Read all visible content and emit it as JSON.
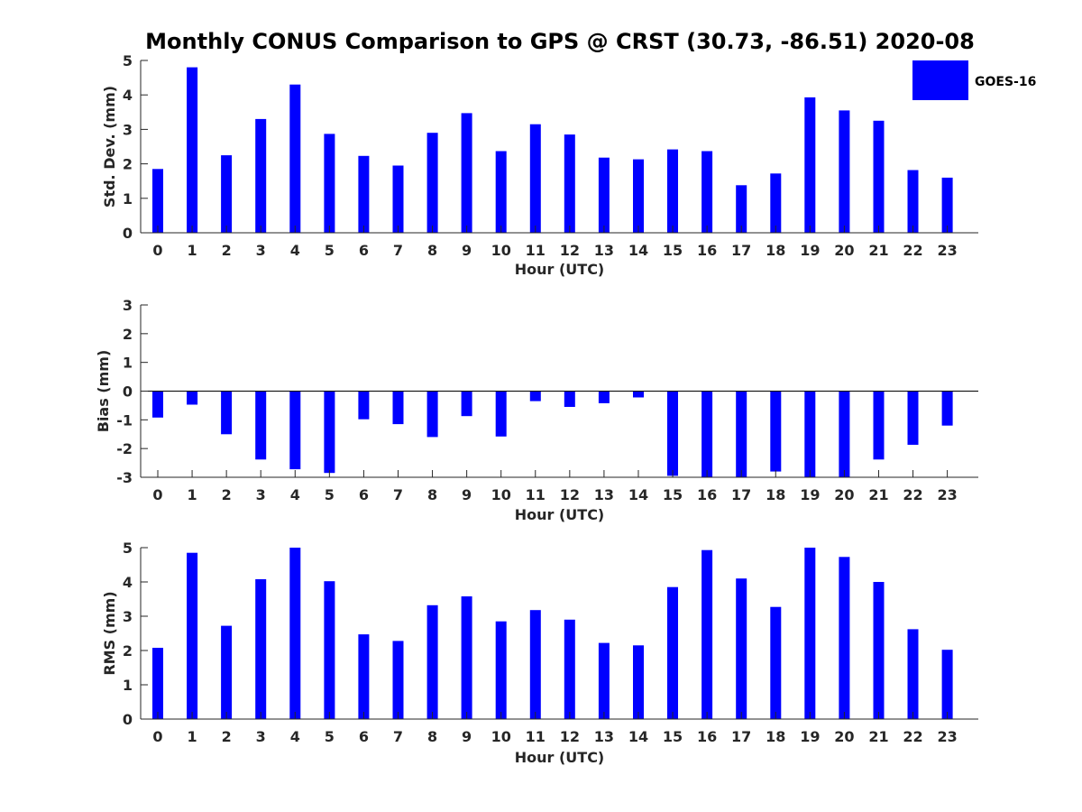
{
  "title": "Monthly CONUS Comparison to GPS @ CRST (30.73, -86.51) 2020-08",
  "legend": {
    "label": "GOES-16",
    "color": "#0000ff",
    "placement": "top-right"
  },
  "bar_color": "#0000ff",
  "chart_data": [
    {
      "type": "bar",
      "panel": "std-dev",
      "categories": [
        "0",
        "1",
        "2",
        "3",
        "4",
        "5",
        "6",
        "7",
        "8",
        "9",
        "10",
        "11",
        "12",
        "13",
        "14",
        "15",
        "16",
        "17",
        "18",
        "19",
        "20",
        "21",
        "22",
        "23"
      ],
      "series": [
        {
          "name": "GOES-16",
          "values": [
            1.85,
            4.8,
            2.25,
            3.3,
            4.3,
            2.87,
            2.23,
            1.95,
            2.9,
            3.47,
            2.37,
            3.15,
            2.85,
            2.18,
            2.13,
            2.42,
            2.37,
            1.38,
            1.72,
            3.93,
            3.55,
            3.25,
            1.82,
            1.6
          ]
        }
      ],
      "xlabel": "Hour (UTC)",
      "ylabel": "Std. Dev. (mm)",
      "ylim": [
        0,
        5
      ],
      "yticks": [
        "0",
        "1",
        "2",
        "3",
        "4",
        "5"
      ]
    },
    {
      "type": "bar",
      "panel": "bias",
      "categories": [
        "0",
        "1",
        "2",
        "3",
        "4",
        "5",
        "6",
        "7",
        "8",
        "9",
        "10",
        "11",
        "12",
        "13",
        "14",
        "15",
        "16",
        "17",
        "18",
        "19",
        "20",
        "21",
        "22",
        "23"
      ],
      "series": [
        {
          "name": "GOES-16",
          "values": [
            -0.92,
            -0.47,
            -1.5,
            -2.38,
            -2.72,
            -2.85,
            -0.98,
            -1.15,
            -1.6,
            -0.87,
            -1.58,
            -0.35,
            -0.55,
            -0.42,
            -0.22,
            -2.95,
            -3.0,
            -3.0,
            -2.8,
            -3.0,
            -3.0,
            -2.38,
            -1.87,
            -1.2
          ]
        }
      ],
      "xlabel": "Hour (UTC)",
      "ylabel": "Bias (mm)",
      "ylim": [
        -3,
        3
      ],
      "yticks": [
        "-3",
        "-2",
        "-1",
        "0",
        "1",
        "2",
        "3"
      ],
      "zero_line": true
    },
    {
      "type": "bar",
      "panel": "rms",
      "categories": [
        "0",
        "1",
        "2",
        "3",
        "4",
        "5",
        "6",
        "7",
        "8",
        "9",
        "10",
        "11",
        "12",
        "13",
        "14",
        "15",
        "16",
        "17",
        "18",
        "19",
        "20",
        "21",
        "22",
        "23"
      ],
      "series": [
        {
          "name": "GOES-16",
          "values": [
            2.08,
            4.85,
            2.72,
            4.08,
            5.0,
            4.02,
            2.47,
            2.28,
            3.32,
            3.58,
            2.85,
            3.18,
            2.9,
            2.22,
            2.15,
            3.85,
            4.93,
            4.1,
            3.27,
            5.0,
            4.73,
            4.0,
            2.62,
            2.02
          ]
        }
      ],
      "xlabel": "Hour (UTC)",
      "ylabel": "RMS (mm)",
      "ylim": [
        0,
        5
      ],
      "yticks": [
        "0",
        "1",
        "2",
        "3",
        "4",
        "5"
      ]
    }
  ]
}
